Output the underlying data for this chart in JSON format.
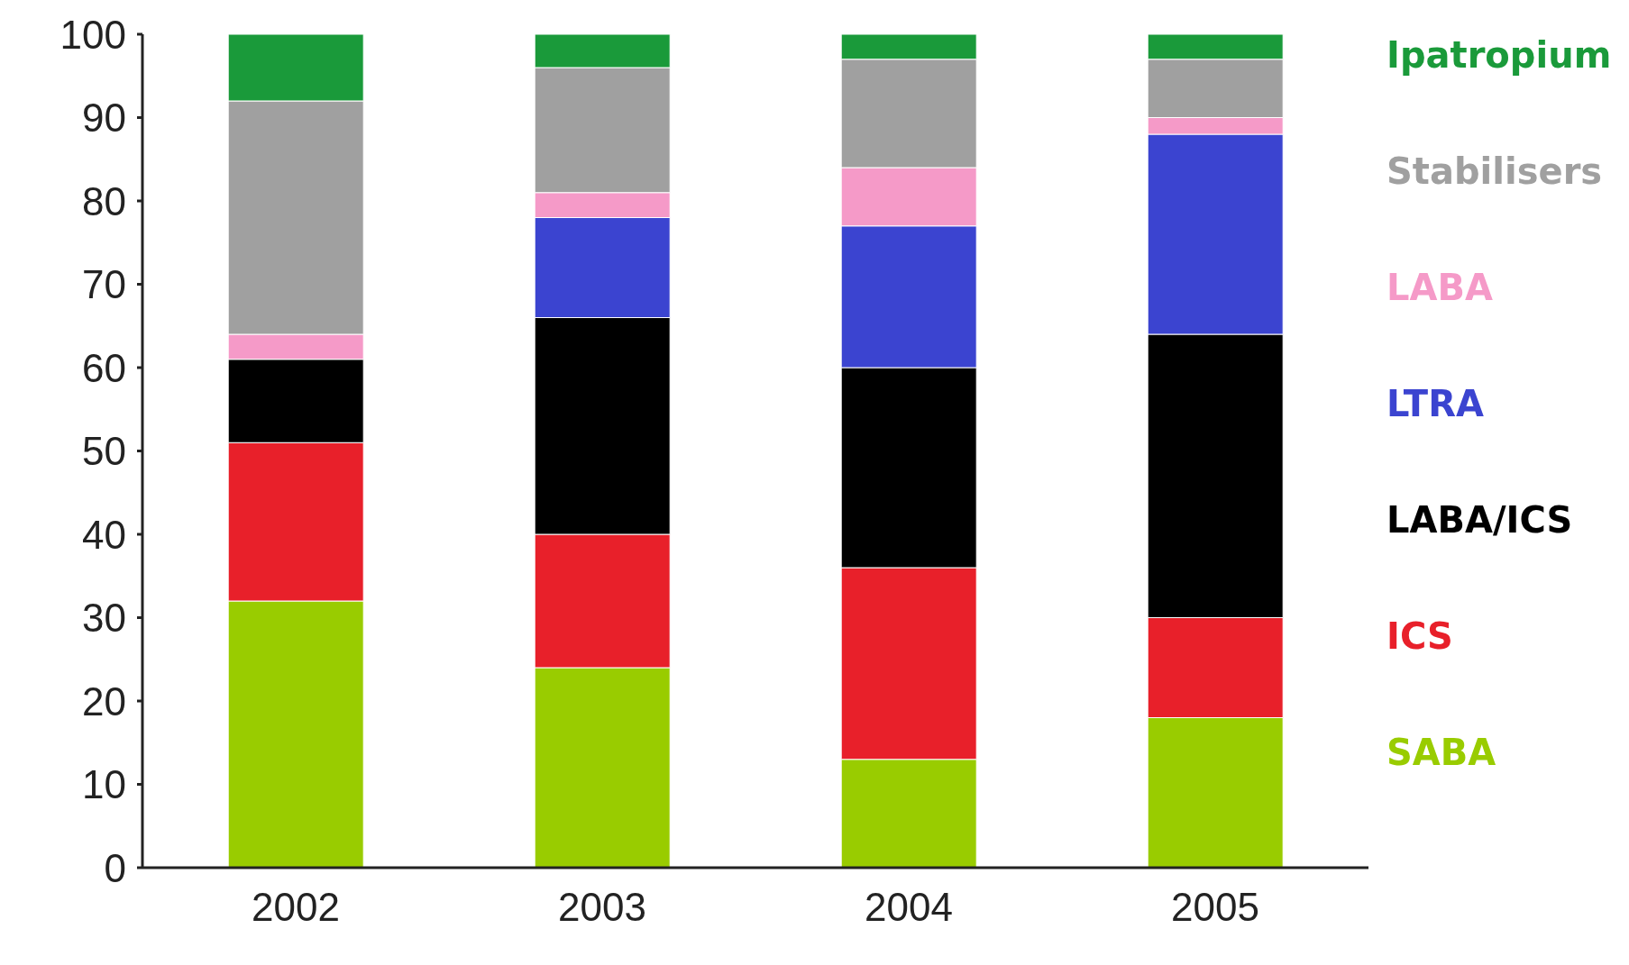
{
  "chart_data": {
    "type": "bar",
    "stacked": true,
    "categories": [
      "2002",
      "2003",
      "2004",
      "2005"
    ],
    "series": [
      {
        "name": "SABA",
        "color": "#99cc00",
        "values": [
          32,
          24,
          13,
          18
        ]
      },
      {
        "name": "ICS",
        "color": "#e8202a",
        "values": [
          19,
          16,
          23,
          12
        ]
      },
      {
        "name": "LABA/ICS",
        "color": "#000000",
        "values": [
          10,
          26,
          24,
          34
        ]
      },
      {
        "name": "LTRA",
        "color": "#3b44d0",
        "values": [
          0,
          12,
          17,
          24
        ]
      },
      {
        "name": "LABA",
        "color": "#f59ac8",
        "values": [
          3,
          3,
          7,
          2
        ]
      },
      {
        "name": "Stabilisers",
        "color": "#a0a0a0",
        "values": [
          28,
          15,
          13,
          7
        ]
      },
      {
        "name": "Ipatropium",
        "color": "#1a9a3a",
        "values": [
          8,
          4,
          3,
          3
        ]
      }
    ],
    "ylim": [
      0,
      100
    ],
    "yticks": [
      0,
      10,
      20,
      30,
      40,
      50,
      60,
      70,
      80,
      90,
      100
    ],
    "legend": "right"
  }
}
